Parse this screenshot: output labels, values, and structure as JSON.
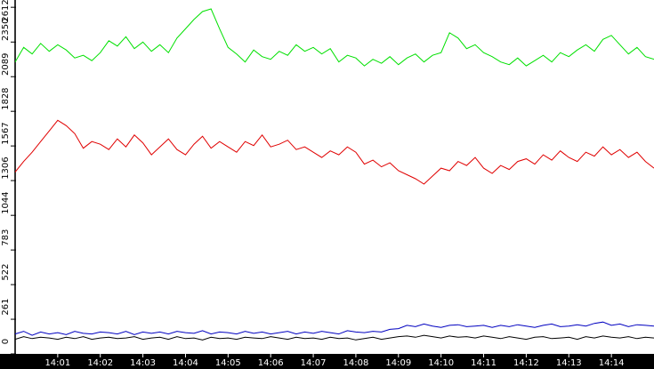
{
  "chart_data": {
    "type": "line",
    "xlim": [
      0,
      15
    ],
    "xticks": [
      {
        "value": 1,
        "label": "14:01"
      },
      {
        "value": 2,
        "label": "14:02"
      },
      {
        "value": 3,
        "label": "14:03"
      },
      {
        "value": 4,
        "label": "14:04"
      },
      {
        "value": 5,
        "label": "14:05"
      },
      {
        "value": 6,
        "label": "14:06"
      },
      {
        "value": 7,
        "label": "14:07"
      },
      {
        "value": 8,
        "label": "14:08"
      },
      {
        "value": 9,
        "label": "14:09"
      },
      {
        "value": 10,
        "label": "14:10"
      },
      {
        "value": 11,
        "label": "14:11"
      },
      {
        "value": 12,
        "label": "14:12"
      },
      {
        "value": 13,
        "label": "14:13"
      },
      {
        "value": 14,
        "label": "14:14"
      }
    ],
    "ylim": [
      0,
      2640
    ],
    "yticks": [
      0,
      261,
      522,
      783,
      1044,
      1306,
      1567,
      1828,
      2089,
      2350,
      2612
    ],
    "x": [
      0,
      0.2,
      0.4,
      0.6,
      0.8,
      1,
      1.2,
      1.4,
      1.6,
      1.8,
      2,
      2.2,
      2.4,
      2.6,
      2.8,
      3,
      3.2,
      3.4,
      3.6,
      3.8,
      4,
      4.2,
      4.4,
      4.6,
      4.8,
      5,
      5.2,
      5.4,
      5.6,
      5.8,
      6,
      6.2,
      6.4,
      6.6,
      6.8,
      7,
      7.2,
      7.4,
      7.6,
      7.8,
      8,
      8.2,
      8.4,
      8.6,
      8.8,
      9,
      9.2,
      9.4,
      9.6,
      9.8,
      10,
      10.2,
      10.4,
      10.6,
      10.8,
      11,
      11.2,
      11.4,
      11.6,
      11.8,
      12,
      12.2,
      12.4,
      12.6,
      12.8,
      13,
      13.2,
      13.4,
      13.6,
      13.8,
      14,
      14.2,
      14.4,
      14.6,
      14.8,
      15
    ],
    "series": [
      {
        "color": "#00e000",
        "values": [
          2200,
          2310,
          2260,
          2340,
          2280,
          2330,
          2290,
          2230,
          2250,
          2210,
          2270,
          2360,
          2320,
          2390,
          2300,
          2350,
          2280,
          2330,
          2270,
          2380,
          2450,
          2520,
          2580,
          2600,
          2450,
          2310,
          2260,
          2200,
          2290,
          2240,
          2220,
          2280,
          2250,
          2330,
          2280,
          2310,
          2260,
          2300,
          2200,
          2250,
          2230,
          2170,
          2220,
          2190,
          2240,
          2180,
          2230,
          2260,
          2200,
          2250,
          2270,
          2420,
          2380,
          2300,
          2330,
          2270,
          2240,
          2200,
          2180,
          2230,
          2170,
          2210,
          2250,
          2200,
          2270,
          2240,
          2290,
          2330,
          2280,
          2370,
          2400,
          2330,
          2260,
          2310,
          2240,
          2220
        ]
      },
      {
        "color": "#e00000",
        "values": [
          1370,
          1450,
          1520,
          1600,
          1680,
          1760,
          1720,
          1660,
          1550,
          1600,
          1580,
          1540,
          1620,
          1560,
          1650,
          1590,
          1500,
          1560,
          1620,
          1540,
          1500,
          1580,
          1640,
          1550,
          1600,
          1560,
          1520,
          1600,
          1570,
          1650,
          1560,
          1580,
          1610,
          1540,
          1560,
          1520,
          1480,
          1530,
          1500,
          1560,
          1520,
          1430,
          1460,
          1410,
          1440,
          1380,
          1350,
          1320,
          1280,
          1340,
          1400,
          1380,
          1450,
          1420,
          1480,
          1400,
          1360,
          1420,
          1390,
          1450,
          1470,
          1430,
          1500,
          1460,
          1530,
          1480,
          1450,
          1520,
          1490,
          1560,
          1500,
          1540,
          1480,
          1520,
          1450,
          1400
        ]
      },
      {
        "color": "#0000c0",
        "values": [
          150,
          170,
          140,
          165,
          150,
          160,
          145,
          170,
          155,
          150,
          165,
          160,
          150,
          170,
          145,
          165,
          155,
          165,
          150,
          170,
          160,
          155,
          175,
          150,
          165,
          160,
          150,
          170,
          155,
          165,
          150,
          160,
          170,
          150,
          165,
          155,
          170,
          160,
          150,
          175,
          165,
          160,
          170,
          165,
          185,
          190,
          215,
          205,
          225,
          210,
          200,
          215,
          220,
          205,
          210,
          215,
          200,
          215,
          205,
          220,
          210,
          200,
          215,
          225,
          205,
          210,
          220,
          210,
          230,
          240,
          215,
          225,
          205,
          220,
          215,
          210
        ]
      },
      {
        "color": "#000000",
        "values": [
          110,
          130,
          115,
          125,
          120,
          110,
          125,
          115,
          130,
          110,
          120,
          125,
          115,
          120,
          130,
          110,
          120,
          125,
          110,
          130,
          115,
          120,
          105,
          125,
          115,
          120,
          110,
          125,
          120,
          115,
          130,
          120,
          110,
          125,
          115,
          120,
          110,
          125,
          115,
          120,
          105,
          115,
          125,
          110,
          120,
          130,
          135,
          125,
          140,
          130,
          120,
          135,
          125,
          130,
          120,
          135,
          125,
          115,
          130,
          120,
          110,
          125,
          130,
          115,
          120,
          125,
          110,
          130,
          120,
          135,
          125,
          120,
          130,
          115,
          125,
          120
        ]
      }
    ]
  }
}
